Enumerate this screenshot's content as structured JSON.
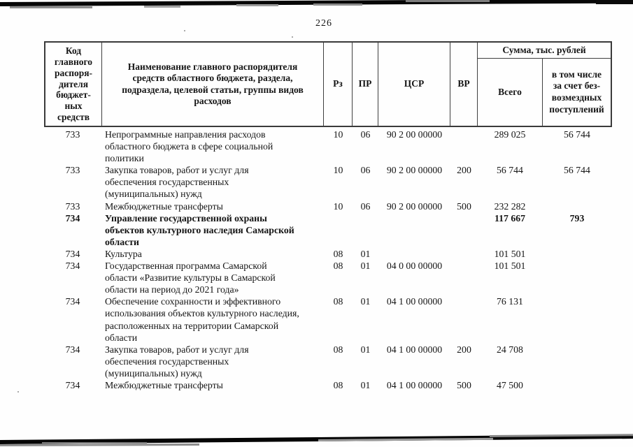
{
  "page": {
    "number": "226"
  },
  "table": {
    "header": {
      "col_code": "Код\nглавного\nраспоря-\nдителя\nбюджет-\nных\nсредств",
      "col_name": "Наименование главного распорядителя\nсредств областного бюджета, раздела,\nподраздела, целевой статьи, группы видов\nрасходов",
      "col_rz": "Рз",
      "col_pr": "ПР",
      "col_csr": "ЦСР",
      "col_vr": "ВР",
      "sum_title": "Сумма, тыс. рублей",
      "col_total": "Всего",
      "col_gratuitous": "в том числе\nза счет без-\nвозмездных\nпоступлений"
    },
    "rows": [
      {
        "code": "733",
        "name": "Непрограммные направления расходов\nобластного бюджета в сфере социальной\nполитики",
        "rz": "10",
        "pr": "06",
        "csr": "90 2 00 00000",
        "vr": "",
        "total": "289 025",
        "gratuitous": "56 744"
      },
      {
        "code": "733",
        "name": "Закупка товаров, работ и услуг для\nобеспечения государственных\n(муниципальных) нужд",
        "rz": "10",
        "pr": "06",
        "csr": "90 2 00 00000",
        "vr": "200",
        "total": "56 744",
        "gratuitous": "56 744"
      },
      {
        "code": "733",
        "name": "Межбюджетные трансферты",
        "rz": "10",
        "pr": "06",
        "csr": "90 2 00 00000",
        "vr": "500",
        "total": "232 282",
        "gratuitous": ""
      },
      {
        "code": "734",
        "name": "Управление государственной охраны\nобъектов культурного наследия Самарской\nобласти",
        "rz": "",
        "pr": "",
        "csr": "",
        "vr": "",
        "total": "117 667",
        "gratuitous": "793"
      },
      {
        "code": "734",
        "name": "Культура",
        "rz": "08",
        "pr": "01",
        "csr": "",
        "vr": "",
        "total": "101 501",
        "gratuitous": ""
      },
      {
        "code": "734",
        "name": "Государственная программа Самарской\nобласти «Развитие культуры в Самарской\nобласти на период до 2021 года»",
        "rz": "08",
        "pr": "01",
        "csr": "04 0 00 00000",
        "vr": "",
        "total": "101 501",
        "gratuitous": ""
      },
      {
        "code": "734",
        "name": "Обеспечение сохранности и эффективного\nиспользования объектов культурного наследия,\nрасположенных на территории Самарской\nобласти",
        "rz": "08",
        "pr": "01",
        "csr": "04 1 00 00000",
        "vr": "",
        "total": "76 131",
        "gratuitous": ""
      },
      {
        "code": "734",
        "name": "Закупка товаров, работ и услуг для\nобеспечения государственных\n(муниципальных) нужд",
        "rz": "08",
        "pr": "01",
        "csr": "04 1 00 00000",
        "vr": "200",
        "total": "24 708",
        "gratuitous": ""
      },
      {
        "code": "734",
        "name": "Межбюджетные трансферты",
        "rz": "08",
        "pr": "01",
        "csr": "04 1 00 00000",
        "vr": "500",
        "total": "47 500",
        "gratuitous": ""
      }
    ]
  }
}
